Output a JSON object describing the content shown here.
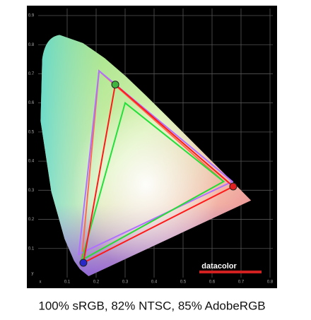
{
  "chart_data": {
    "type": "line",
    "closed": true,
    "x_label": "x",
    "y_label": "y",
    "xlim": [
      0,
      0.8
    ],
    "ylim": [
      0,
      0.9
    ],
    "xticks": [
      0.1,
      0.2,
      0.3,
      0.4,
      0.5,
      0.6,
      0.7,
      0.8
    ],
    "yticks": [
      0.1,
      0.2,
      0.3,
      0.4,
      0.5,
      0.6,
      0.7,
      0.8,
      0.9
    ],
    "grid": true,
    "series": [
      {
        "color": "#ff6a50",
        "x": [
          0.21,
          0.64,
          0.15
        ],
        "values": [
          0.71,
          0.33,
          0.06
        ]
      },
      {
        "color": "#b070ff",
        "x": [
          0.21,
          0.67,
          0.14
        ],
        "values": [
          0.71,
          0.33,
          0.08
        ]
      },
      {
        "color": "#22e03a",
        "x": [
          0.3,
          0.64,
          0.15
        ],
        "values": [
          0.6,
          0.33,
          0.06
        ]
      },
      {
        "color": "#ff1a1a",
        "x": [
          0.266,
          0.673,
          0.156
        ],
        "values": [
          0.663,
          0.313,
          0.051
        ],
        "marker_colors": [
          "#3fb53f",
          "#e02020",
          "#2828c8"
        ]
      }
    ]
  },
  "logo": "datacolor",
  "caption": "100% sRGB, 82% NTSC, 85% AdobeRGB"
}
